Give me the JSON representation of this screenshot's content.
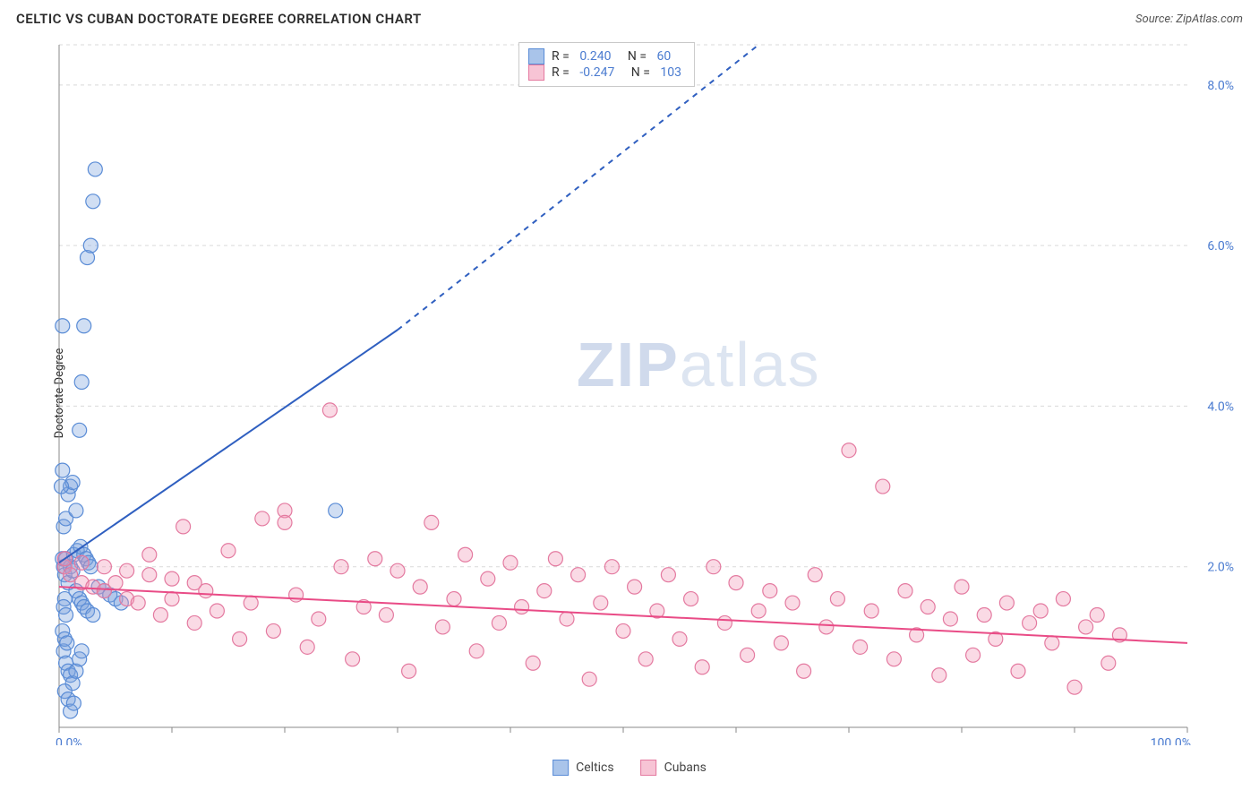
{
  "title": "CELTIC VS CUBAN DOCTORATE DEGREE CORRELATION CHART",
  "source": "Source: ZipAtlas.com",
  "ylabel": "Doctorate Degree",
  "watermark": {
    "bold": "ZIP",
    "light": "atlas"
  },
  "chart": {
    "type": "scatter",
    "background_color": "#ffffff",
    "grid_color": "#d9d9d9",
    "axis_color": "#888888",
    "tick_label_color": "#4a7bd0",
    "xlim": [
      0,
      100
    ],
    "ylim": [
      0,
      8.5
    ],
    "x_ticks": [
      0,
      10,
      20,
      30,
      40,
      50,
      60,
      70,
      80,
      90,
      100
    ],
    "x_tick_labels_shown": {
      "0": "0.0%",
      "100": "100.0%"
    },
    "y_ticks": [
      2,
      4,
      6,
      8
    ],
    "y_tick_labels": [
      "2.0%",
      "4.0%",
      "6.0%",
      "8.0%"
    ],
    "marker_radius": 8,
    "marker_stroke_width": 1.2,
    "series": [
      {
        "name": "Celtics",
        "fill": "rgba(120,160,220,0.35)",
        "stroke": "#5a8cd6",
        "swatch_fill": "#a9c4ea",
        "swatch_stroke": "#5a8cd6",
        "R": "0.240",
        "N": "60",
        "trend": {
          "x1": 0,
          "y1": 2.05,
          "x2_solid": 30,
          "y2_solid": 4.95,
          "x2_dash": 62,
          "y2_dash": 8.5,
          "color": "#2f5fc0"
        },
        "points": [
          [
            0.3,
            2.1
          ],
          [
            0.4,
            2.0
          ],
          [
            0.5,
            1.9
          ],
          [
            0.6,
            2.1
          ],
          [
            0.8,
            1.8
          ],
          [
            0.5,
            1.6
          ],
          [
            0.4,
            1.5
          ],
          [
            0.6,
            1.4
          ],
          [
            1.0,
            2.0
          ],
          [
            1.2,
            1.95
          ],
          [
            1.5,
            1.7
          ],
          [
            1.8,
            1.6
          ],
          [
            2.0,
            1.55
          ],
          [
            2.2,
            1.5
          ],
          [
            2.5,
            1.45
          ],
          [
            3.0,
            1.4
          ],
          [
            0.4,
            0.95
          ],
          [
            0.6,
            0.8
          ],
          [
            0.8,
            0.7
          ],
          [
            1.0,
            0.65
          ],
          [
            1.2,
            0.55
          ],
          [
            1.5,
            0.7
          ],
          [
            1.8,
            0.85
          ],
          [
            2.0,
            0.95
          ],
          [
            0.5,
            0.45
          ],
          [
            0.8,
            0.35
          ],
          [
            1.0,
            0.2
          ],
          [
            1.3,
            0.3
          ],
          [
            0.4,
            2.5
          ],
          [
            0.6,
            2.6
          ],
          [
            0.8,
            2.9
          ],
          [
            1.0,
            3.0
          ],
          [
            1.2,
            3.05
          ],
          [
            1.5,
            2.7
          ],
          [
            0.3,
            3.2
          ],
          [
            1.8,
            3.7
          ],
          [
            2.0,
            4.3
          ],
          [
            2.2,
            5.0
          ],
          [
            2.5,
            5.85
          ],
          [
            2.8,
            6.0
          ],
          [
            3.0,
            6.55
          ],
          [
            3.2,
            6.95
          ],
          [
            24.5,
            2.7
          ],
          [
            3.5,
            1.75
          ],
          [
            4.0,
            1.7
          ],
          [
            4.5,
            1.65
          ],
          [
            5.0,
            1.6
          ],
          [
            5.5,
            1.55
          ],
          [
            1.3,
            2.15
          ],
          [
            1.6,
            2.2
          ],
          [
            1.9,
            2.25
          ],
          [
            2.2,
            2.15
          ],
          [
            2.4,
            2.1
          ],
          [
            2.6,
            2.05
          ],
          [
            2.8,
            2.0
          ],
          [
            0.3,
            1.2
          ],
          [
            0.5,
            1.1
          ],
          [
            0.7,
            1.05
          ],
          [
            0.2,
            3.0
          ],
          [
            0.3,
            5.0
          ]
        ]
      },
      {
        "name": "Cubans",
        "fill": "rgba(240,150,180,0.35)",
        "stroke": "#e47aa0",
        "swatch_fill": "#f7c4d5",
        "swatch_stroke": "#e47aa0",
        "R": "-0.247",
        "N": "103",
        "trend": {
          "x1": 0,
          "y1": 1.75,
          "x2_solid": 100,
          "y2_solid": 1.05,
          "color": "#e94b86"
        },
        "points": [
          [
            0.5,
            2.0
          ],
          [
            1,
            1.9
          ],
          [
            2,
            1.8
          ],
          [
            3,
            1.75
          ],
          [
            4,
            1.7
          ],
          [
            5,
            1.8
          ],
          [
            6,
            1.6
          ],
          [
            7,
            1.55
          ],
          [
            8,
            2.15
          ],
          [
            9,
            1.4
          ],
          [
            10,
            1.6
          ],
          [
            11,
            2.5
          ],
          [
            12,
            1.3
          ],
          [
            13,
            1.7
          ],
          [
            14,
            1.45
          ],
          [
            15,
            2.2
          ],
          [
            16,
            1.1
          ],
          [
            17,
            1.55
          ],
          [
            18,
            2.6
          ],
          [
            19,
            1.2
          ],
          [
            20,
            2.7
          ],
          [
            20,
            2.55
          ],
          [
            21,
            1.65
          ],
          [
            22,
            1.0
          ],
          [
            23,
            1.35
          ],
          [
            24,
            3.95
          ],
          [
            25,
            2.0
          ],
          [
            26,
            0.85
          ],
          [
            27,
            1.5
          ],
          [
            28,
            2.1
          ],
          [
            29,
            1.4
          ],
          [
            30,
            1.95
          ],
          [
            31,
            0.7
          ],
          [
            32,
            1.75
          ],
          [
            33,
            2.55
          ],
          [
            34,
            1.25
          ],
          [
            35,
            1.6
          ],
          [
            36,
            2.15
          ],
          [
            37,
            0.95
          ],
          [
            38,
            1.85
          ],
          [
            39,
            1.3
          ],
          [
            40,
            2.05
          ],
          [
            41,
            1.5
          ],
          [
            42,
            0.8
          ],
          [
            43,
            1.7
          ],
          [
            44,
            2.1
          ],
          [
            45,
            1.35
          ],
          [
            46,
            1.9
          ],
          [
            47,
            0.6
          ],
          [
            48,
            1.55
          ],
          [
            49,
            2.0
          ],
          [
            50,
            1.2
          ],
          [
            51,
            1.75
          ],
          [
            52,
            0.85
          ],
          [
            53,
            1.45
          ],
          [
            54,
            1.9
          ],
          [
            55,
            1.1
          ],
          [
            56,
            1.6
          ],
          [
            57,
            0.75
          ],
          [
            58,
            2.0
          ],
          [
            59,
            1.3
          ],
          [
            60,
            1.8
          ],
          [
            61,
            0.9
          ],
          [
            62,
            1.45
          ],
          [
            63,
            1.7
          ],
          [
            64,
            1.05
          ],
          [
            65,
            1.55
          ],
          [
            66,
            0.7
          ],
          [
            67,
            1.9
          ],
          [
            68,
            1.25
          ],
          [
            69,
            1.6
          ],
          [
            70,
            3.45
          ],
          [
            71,
            1.0
          ],
          [
            72,
            1.45
          ],
          [
            73,
            3.0
          ],
          [
            74,
            0.85
          ],
          [
            75,
            1.7
          ],
          [
            76,
            1.15
          ],
          [
            77,
            1.5
          ],
          [
            78,
            0.65
          ],
          [
            79,
            1.35
          ],
          [
            80,
            1.75
          ],
          [
            81,
            0.9
          ],
          [
            82,
            1.4
          ],
          [
            83,
            1.1
          ],
          [
            84,
            1.55
          ],
          [
            85,
            0.7
          ],
          [
            86,
            1.3
          ],
          [
            87,
            1.45
          ],
          [
            88,
            1.05
          ],
          [
            89,
            1.6
          ],
          [
            90,
            0.5
          ],
          [
            91,
            1.25
          ],
          [
            92,
            1.4
          ],
          [
            93,
            0.8
          ],
          [
            94,
            1.15
          ],
          [
            0.5,
            2.1
          ],
          [
            2,
            2.05
          ],
          [
            4,
            2.0
          ],
          [
            6,
            1.95
          ],
          [
            8,
            1.9
          ],
          [
            10,
            1.85
          ],
          [
            12,
            1.8
          ]
        ]
      }
    ]
  }
}
